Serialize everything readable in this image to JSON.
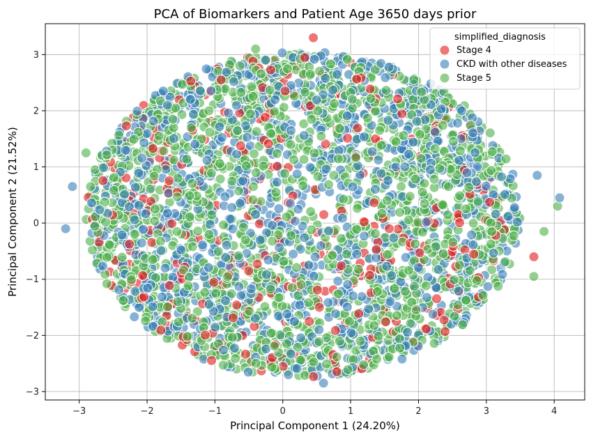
{
  "chart_data": {
    "type": "scatter",
    "title": "PCA of Biomarkers and Patient Age 3650 days prior",
    "xlabel": "Principal Component 1 (24.20%)",
    "ylabel": "Principal Component 2 (21.52%)",
    "xlim": [
      -3.5,
      4.45
    ],
    "ylim": [
      -3.15,
      3.55
    ],
    "xticks": [
      -3,
      -2,
      -1,
      0,
      1,
      2,
      3,
      4
    ],
    "yticks": [
      -3,
      -2,
      -1,
      0,
      1,
      2,
      3
    ],
    "grid": true,
    "legend": {
      "title": "simplified_diagnosis",
      "placement": "top-right",
      "entries": [
        "Stage 4",
        "CKD with other diseases",
        "Stage 5"
      ]
    },
    "series": [
      {
        "name": "Stage 4",
        "color": "#e31a1c",
        "opacity": 0.6,
        "count": 350
      },
      {
        "name": "CKD with other diseases",
        "color": "#377eb8",
        "opacity": 0.6,
        "count": 1200
      },
      {
        "name": "Stage 5",
        "color": "#4daf4a",
        "opacity": 0.6,
        "count": 1700
      }
    ],
    "distribution": {
      "shape": "disc",
      "center": [
        0.3,
        0.15
      ],
      "radius_x": 3.2,
      "radius_y": 2.9
    },
    "outliers": [
      {
        "x": -3.2,
        "y": -0.1,
        "series": "CKD with other diseases"
      },
      {
        "x": -3.1,
        "y": 0.65,
        "series": "CKD with other diseases"
      },
      {
        "x": -2.9,
        "y": 1.25,
        "series": "Stage 5"
      },
      {
        "x": 4.05,
        "y": 0.3,
        "series": "Stage 5"
      },
      {
        "x": 4.08,
        "y": 0.45,
        "series": "CKD with other diseases"
      },
      {
        "x": 3.75,
        "y": 0.85,
        "series": "CKD with other diseases"
      },
      {
        "x": 3.7,
        "y": -0.6,
        "series": "Stage 4"
      },
      {
        "x": 3.7,
        "y": -0.95,
        "series": "Stage 5"
      },
      {
        "x": 3.85,
        "y": -0.15,
        "series": "Stage 5"
      },
      {
        "x": -0.4,
        "y": 3.1,
        "series": "Stage 5"
      },
      {
        "x": 0.45,
        "y": 3.3,
        "series": "Stage 4"
      },
      {
        "x": 0.6,
        "y": -2.85,
        "series": "CKD with other diseases"
      }
    ]
  }
}
